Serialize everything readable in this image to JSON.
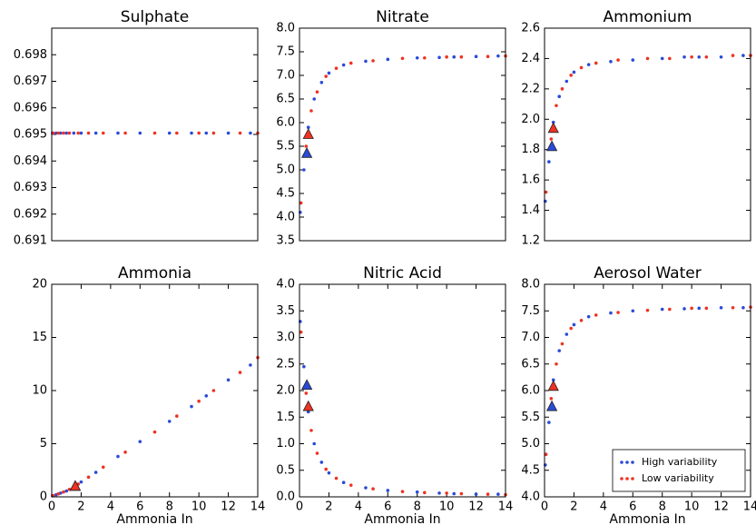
{
  "chart_data": [
    {
      "type": "scatter",
      "title": "Sulphate",
      "xlim": [
        0,
        14
      ],
      "ylim": [
        0.691,
        0.699
      ],
      "yticks": [
        0.691,
        0.692,
        0.693,
        0.694,
        0.695,
        0.696,
        0.697,
        0.698
      ],
      "series": [
        {
          "color": "#2a4bd7",
          "x": [
            0.05,
            0.3,
            0.6,
            1,
            1.5,
            2,
            3,
            4.5,
            6,
            8,
            9.5,
            10.5,
            12,
            13.5
          ],
          "values": [
            0.69505,
            0.69505,
            0.69505,
            0.69505,
            0.69505,
            0.69505,
            0.69505,
            0.69505,
            0.69505,
            0.69505,
            0.69505,
            0.69505,
            0.69505,
            0.69505
          ]
        },
        {
          "color": "#ee3322",
          "x": [
            0.1,
            0.45,
            0.8,
            1.2,
            1.8,
            2.5,
            3.5,
            5,
            7,
            8.5,
            10,
            11,
            12.8,
            14
          ],
          "values": [
            0.69505,
            0.69505,
            0.69505,
            0.69505,
            0.69505,
            0.69505,
            0.69505,
            0.69505,
            0.69505,
            0.69505,
            0.69505,
            0.69505,
            0.69505,
            0.69505
          ]
        }
      ]
    },
    {
      "type": "scatter",
      "title": "Nitrate",
      "xlim": [
        0,
        14
      ],
      "ylim": [
        3.5,
        8
      ],
      "yticks": [
        3.5,
        {
          "value": 4,
          "label": "4.0"
        },
        4.5,
        {
          "value": 5,
          "label": "5.0"
        },
        5.5,
        {
          "value": 6,
          "label": "6.0"
        },
        6.5,
        {
          "value": 7,
          "label": "7.0"
        },
        7.5,
        {
          "value": 8,
          "label": "8.0"
        }
      ],
      "series": [
        {
          "color": "#2a4bd7",
          "x": [
            0.05,
            0.3,
            0.6,
            1,
            1.5,
            2,
            3,
            4.5,
            6,
            8,
            9.5,
            10.5,
            12,
            13.5
          ],
          "values": [
            4.1,
            5.0,
            5.9,
            6.5,
            6.85,
            7.05,
            7.22,
            7.3,
            7.34,
            7.37,
            7.38,
            7.39,
            7.4,
            7.41
          ]
        },
        {
          "color": "#ee3322",
          "x": [
            0.1,
            0.45,
            0.8,
            1.2,
            1.8,
            2.5,
            3.5,
            5,
            7,
            8.5,
            10,
            11,
            12.8,
            14
          ],
          "values": [
            4.3,
            5.5,
            6.25,
            6.65,
            6.98,
            7.15,
            7.26,
            7.31,
            7.36,
            7.37,
            7.39,
            7.39,
            7.4,
            7.41
          ]
        },
        {
          "color": "#2a4bd7",
          "marker": "triangle",
          "x": [
            0.5
          ],
          "values": [
            5.35
          ]
        },
        {
          "color": "#ee3322",
          "marker": "triangle",
          "x": [
            0.6
          ],
          "values": [
            5.75
          ]
        }
      ]
    },
    {
      "type": "scatter",
      "title": "Ammonium",
      "xlim": [
        0,
        14
      ],
      "ylim": [
        1.2,
        2.6
      ],
      "yticks": [
        1.2,
        1.4,
        1.6,
        1.8,
        {
          "value": 2,
          "label": "2.0"
        },
        2.2,
        2.4,
        2.6
      ],
      "series": [
        {
          "color": "#2a4bd7",
          "x": [
            0.05,
            0.3,
            0.6,
            1,
            1.5,
            2,
            3,
            4.5,
            6,
            8,
            9.5,
            10.5,
            12,
            13.5
          ],
          "values": [
            1.46,
            1.72,
            1.98,
            2.15,
            2.25,
            2.31,
            2.36,
            2.38,
            2.39,
            2.4,
            2.41,
            2.41,
            2.41,
            2.42
          ]
        },
        {
          "color": "#ee3322",
          "x": [
            0.1,
            0.45,
            0.8,
            1.2,
            1.8,
            2.5,
            3.5,
            5,
            7,
            8.5,
            10,
            11,
            12.8,
            14
          ],
          "values": [
            1.52,
            1.87,
            2.09,
            2.2,
            2.29,
            2.34,
            2.37,
            2.39,
            2.4,
            2.4,
            2.41,
            2.41,
            2.42,
            2.42
          ]
        },
        {
          "color": "#2a4bd7",
          "marker": "triangle",
          "x": [
            0.5
          ],
          "values": [
            1.82
          ]
        },
        {
          "color": "#ee3322",
          "marker": "triangle",
          "x": [
            0.6
          ],
          "values": [
            1.94
          ]
        }
      ]
    },
    {
      "type": "scatter",
      "title": "Ammonia",
      "xlabel": "Ammonia In",
      "xlim": [
        0,
        14
      ],
      "ylim": [
        0,
        20
      ],
      "xticks": [
        0,
        2,
        4,
        6,
        8,
        10,
        12,
        14
      ],
      "yticks": [
        0,
        5,
        10,
        15,
        20
      ],
      "series": [
        {
          "color": "#2a4bd7",
          "x": [
            0.05,
            0.3,
            0.6,
            1,
            1.5,
            2,
            3,
            4.5,
            6,
            8,
            9.5,
            10.5,
            12,
            13.5
          ],
          "values": [
            0.1,
            0.2,
            0.35,
            0.55,
            0.95,
            1.4,
            2.3,
            3.8,
            5.2,
            7.1,
            8.5,
            9.5,
            11.0,
            12.4
          ]
        },
        {
          "color": "#ee3322",
          "x": [
            0.1,
            0.45,
            0.8,
            1.2,
            1.8,
            2.5,
            3.5,
            5,
            7,
            8.5,
            10,
            11,
            12.8,
            14
          ],
          "values": [
            0.12,
            0.28,
            0.45,
            0.7,
            1.2,
            1.85,
            2.8,
            4.2,
            6.1,
            7.6,
            9.0,
            10.0,
            11.7,
            13.1
          ]
        },
        {
          "color": "#2a4bd7",
          "marker": "triangle",
          "x": [
            1.6
          ],
          "values": [
            1.0
          ]
        },
        {
          "color": "#ee3322",
          "marker": "triangle",
          "x": [
            1.6
          ],
          "values": [
            1.0
          ]
        }
      ]
    },
    {
      "type": "scatter",
      "title": "Nitric Acid",
      "xlabel": "Ammonia In",
      "xlim": [
        0,
        14
      ],
      "ylim": [
        0,
        4
      ],
      "xticks": [
        0,
        2,
        4,
        6,
        8,
        10,
        12,
        14
      ],
      "yticks": [
        {
          "value": 0,
          "label": "0.0"
        },
        0.5,
        {
          "value": 1,
          "label": "1.0"
        },
        1.5,
        {
          "value": 2,
          "label": "2.0"
        },
        2.5,
        {
          "value": 3,
          "label": "3.0"
        },
        3.5,
        {
          "value": 4,
          "label": "4.0"
        }
      ],
      "series": [
        {
          "color": "#2a4bd7",
          "x": [
            0.05,
            0.3,
            0.6,
            1,
            1.5,
            2,
            3,
            4.5,
            6,
            8,
            9.5,
            10.5,
            12,
            13.5
          ],
          "values": [
            3.3,
            2.45,
            1.6,
            1.0,
            0.65,
            0.45,
            0.27,
            0.17,
            0.12,
            0.09,
            0.07,
            0.06,
            0.05,
            0.05
          ]
        },
        {
          "color": "#ee3322",
          "x": [
            0.1,
            0.45,
            0.8,
            1.2,
            1.8,
            2.5,
            3.5,
            5,
            7,
            8.5,
            10,
            11,
            12.8,
            14
          ],
          "values": [
            3.1,
            1.95,
            1.25,
            0.82,
            0.52,
            0.35,
            0.22,
            0.15,
            0.1,
            0.08,
            0.07,
            0.06,
            0.05,
            0.04
          ]
        },
        {
          "color": "#2a4bd7",
          "marker": "triangle",
          "x": [
            0.5
          ],
          "values": [
            2.1
          ]
        },
        {
          "color": "#ee3322",
          "marker": "triangle",
          "x": [
            0.6
          ],
          "values": [
            1.7
          ]
        }
      ]
    },
    {
      "type": "scatter",
      "title": "Aerosol Water",
      "xlabel": "Ammonia In",
      "xlim": [
        0,
        14
      ],
      "ylim": [
        4,
        8
      ],
      "xticks": [
        0,
        2,
        4,
        6,
        8,
        10,
        12,
        14
      ],
      "yticks": [
        {
          "value": 4,
          "label": "4.0"
        },
        4.5,
        {
          "value": 5,
          "label": "5.0"
        },
        5.5,
        {
          "value": 6,
          "label": "6.0"
        },
        6.5,
        {
          "value": 7,
          "label": "7.0"
        },
        7.5,
        {
          "value": 8,
          "label": "8.0"
        }
      ],
      "legend": "lower right",
      "series": [
        {
          "name": "High variability",
          "color": "#2a4bd7",
          "x": [
            0.05,
            0.3,
            0.6,
            1,
            1.5,
            2,
            3,
            4.5,
            6,
            8,
            9.5,
            10.5,
            12,
            13.5
          ],
          "values": [
            4.6,
            5.4,
            6.2,
            6.75,
            7.06,
            7.24,
            7.39,
            7.46,
            7.5,
            7.53,
            7.54,
            7.55,
            7.56,
            7.56
          ]
        },
        {
          "name": "Low variability",
          "color": "#ee3322",
          "x": [
            0.1,
            0.45,
            0.8,
            1.2,
            1.8,
            2.5,
            3.5,
            5,
            7,
            8.5,
            10,
            11,
            12.8,
            14
          ],
          "values": [
            4.8,
            5.85,
            6.5,
            6.88,
            7.17,
            7.32,
            7.42,
            7.47,
            7.51,
            7.53,
            7.55,
            7.55,
            7.56,
            7.57
          ]
        },
        {
          "color": "#2a4bd7",
          "marker": "triangle",
          "x": [
            0.5
          ],
          "values": [
            5.7
          ]
        },
        {
          "color": "#ee3322",
          "marker": "triangle",
          "x": [
            0.6
          ],
          "values": [
            6.08
          ]
        }
      ]
    }
  ]
}
